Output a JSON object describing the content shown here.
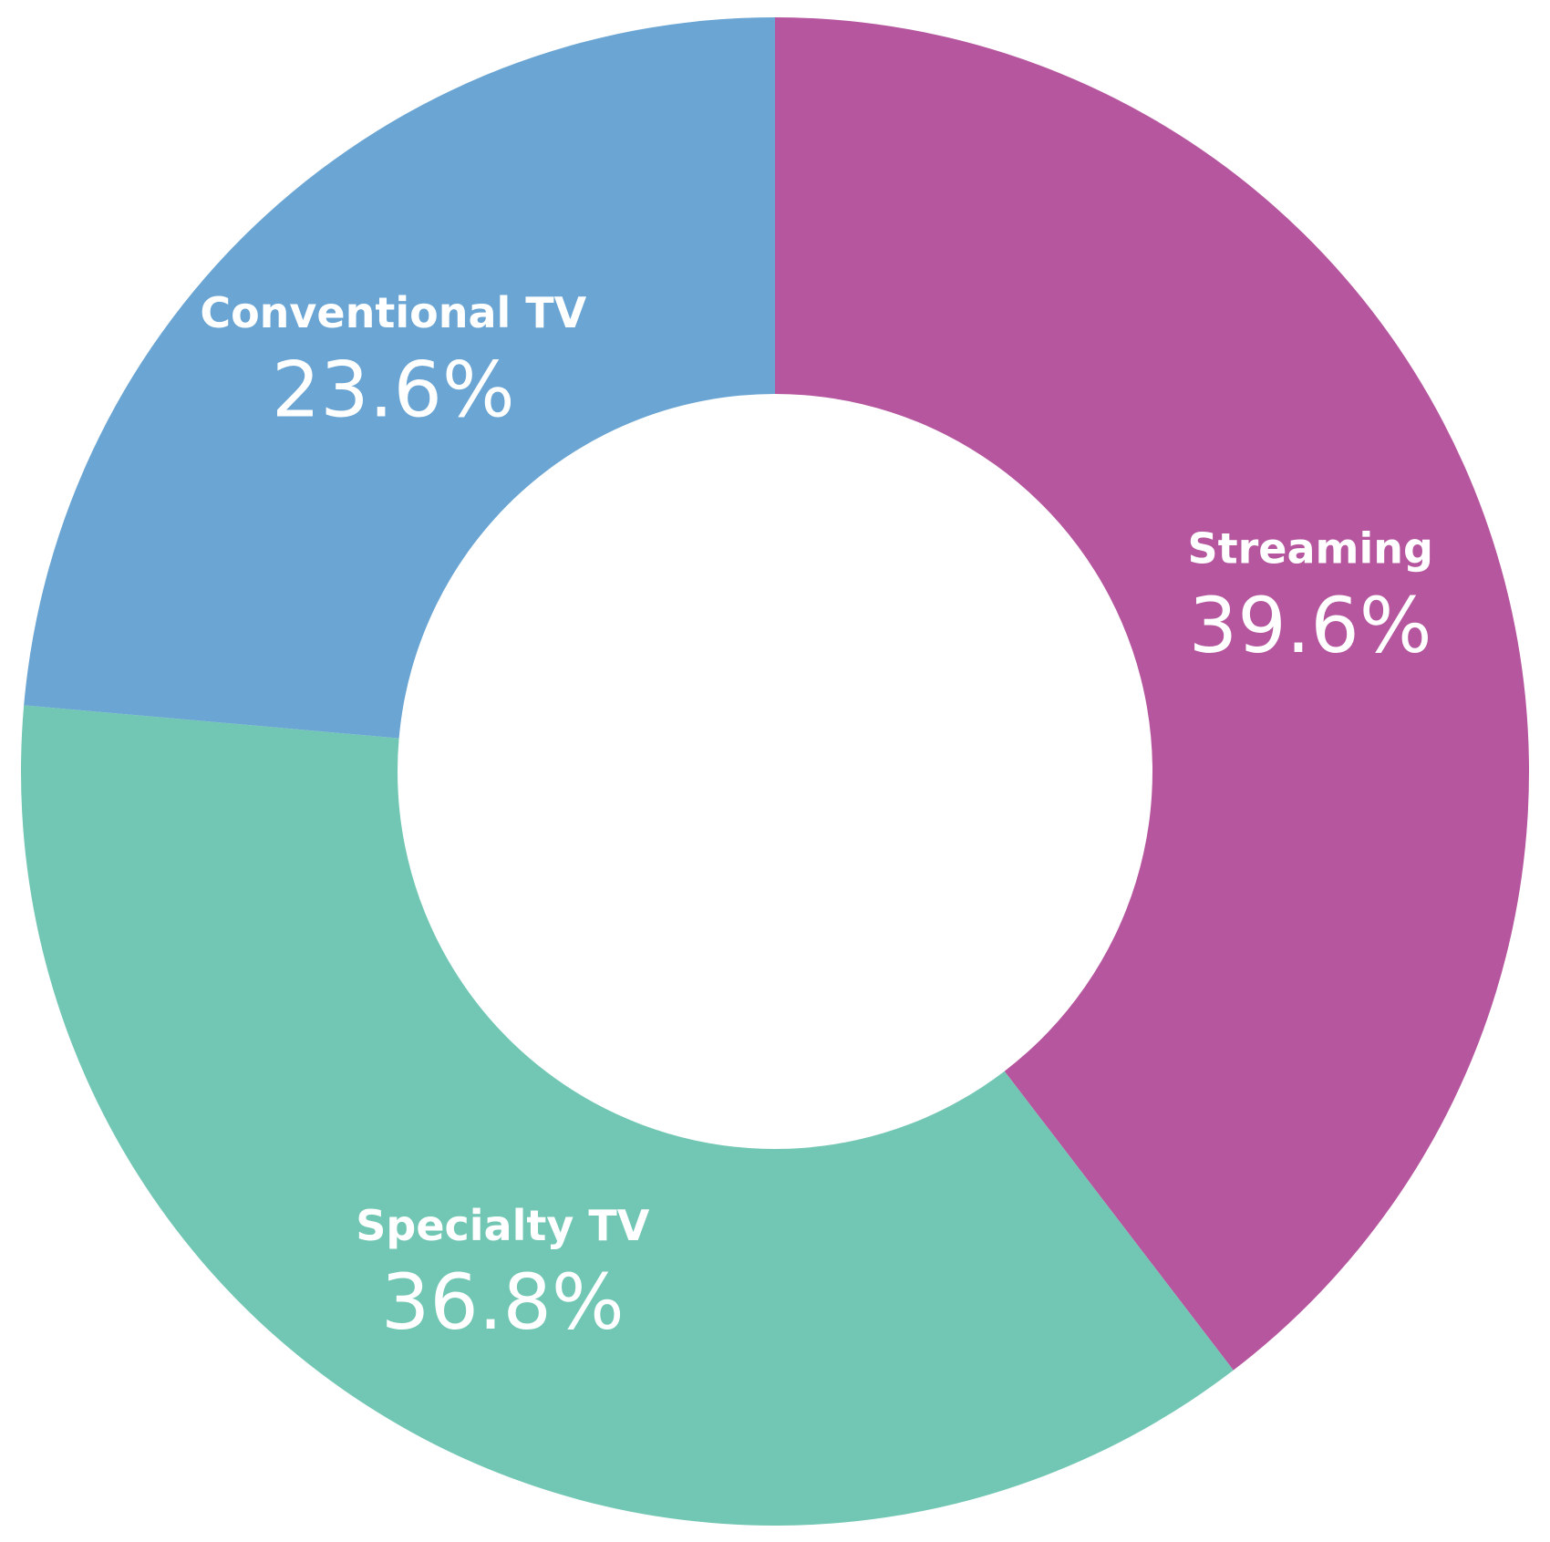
{
  "chart_data": {
    "type": "donut",
    "categories": [
      "Streaming",
      "Specialty TV",
      "Conventional TV"
    ],
    "values": [
      39.6,
      36.8,
      23.6
    ],
    "value_labels": [
      "39.6%",
      "36.8%",
      "23.6%"
    ],
    "colors": [
      "#b5569e",
      "#72c7b4",
      "#6aa5d3"
    ]
  }
}
